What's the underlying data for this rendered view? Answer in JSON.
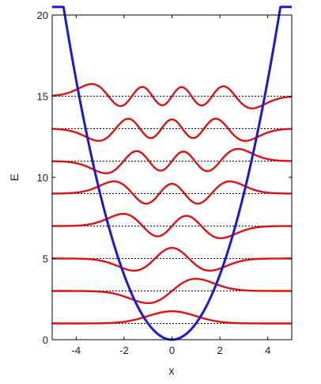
{
  "chart_data": {
    "type": "line",
    "title": "",
    "xlabel": "x",
    "ylabel": "E",
    "xlim": [
      -5,
      5
    ],
    "ylim": [
      0,
      20
    ],
    "xticks": [
      -4,
      -2,
      0,
      2,
      4
    ],
    "xtick_labels": [
      "-4",
      "-2",
      "0",
      "2",
      "4"
    ],
    "yticks": [
      0,
      5,
      10,
      15,
      20
    ],
    "ytick_labels": [
      "0",
      "5",
      "10",
      "15",
      "20"
    ],
    "grid": false,
    "potential": {
      "formula": "V(x) = x^2",
      "color": "#1a1ad6"
    },
    "energy_levels": [
      1,
      3,
      5,
      7,
      9,
      11,
      13,
      15
    ],
    "energy_level_color": "#000000",
    "wavefunction_color": "#dd1111",
    "wavefunction_amplitude": 0.75,
    "wavefunction_sign_flip": [
      false,
      false,
      true,
      true,
      false,
      false,
      true,
      true
    ]
  }
}
